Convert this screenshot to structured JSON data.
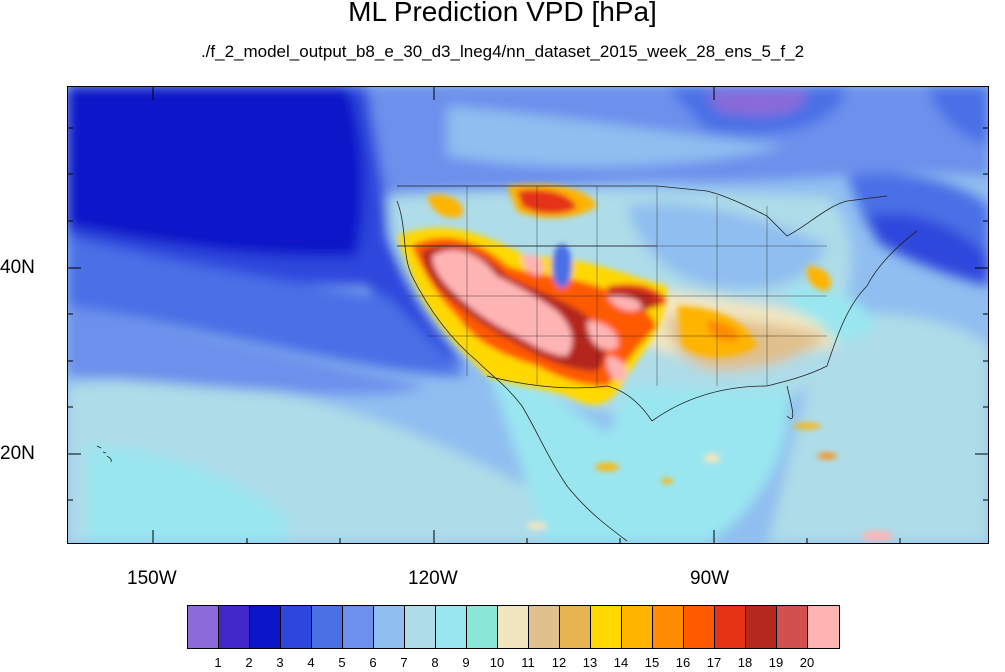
{
  "title": "ML Prediction VPD [hPa]",
  "subtitle": "./f_2_model_output_b8_e_30_d3_lneg4/nn_dataset_2015_week_28_ens_5_f_2",
  "lat_labels": [
    "40N",
    "20N"
  ],
  "lon_labels": [
    "150W",
    "120W",
    "90W"
  ],
  "colorbar": {
    "labels": [
      "1",
      "2",
      "3",
      "4",
      "5",
      "6",
      "7",
      "8",
      "9",
      "10",
      "11",
      "12",
      "13",
      "14",
      "15",
      "16",
      "17",
      "18",
      "19",
      "20"
    ],
    "colors": [
      "#8c6ad9",
      "#4228c8",
      "#0a14c8",
      "#2e46dc",
      "#4a70e6",
      "#6c90ec",
      "#90bef0",
      "#aedce8",
      "#9ae6f0",
      "#8ae6d6",
      "#f2e6c0",
      "#e0c08c",
      "#e6b450",
      "#ffd800",
      "#ffb400",
      "#ff8c00",
      "#ff5a00",
      "#e63214",
      "#b4281e",
      "#d25050",
      "#ffb4b4"
    ]
  },
  "colors": {
    "ocean_deep": "#2e46dc",
    "ocean_mid": "#4a70e6",
    "ocean_light": "#90bef0",
    "land_cool": "#aedce8",
    "hot_core": "#ffb4b4",
    "hot_red": "#e63214",
    "hot_orange": "#ff8c00",
    "warm_yellow": "#ffd800"
  }
}
